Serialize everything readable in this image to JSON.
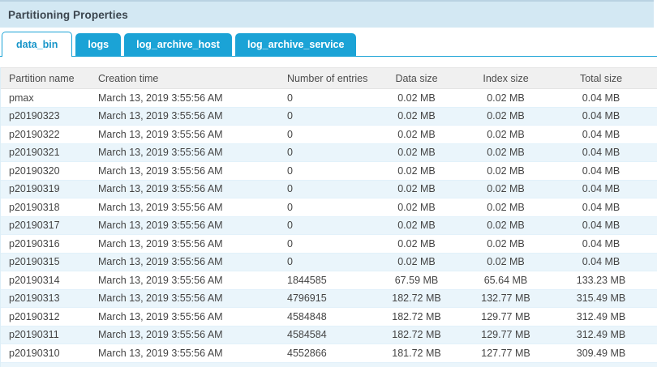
{
  "panel": {
    "title": "Partitioning Properties"
  },
  "tabs": [
    {
      "label": "data_bin",
      "active": true
    },
    {
      "label": "logs",
      "active": false
    },
    {
      "label": "log_archive_host",
      "active": false
    },
    {
      "label": "log_archive_service",
      "active": false
    }
  ],
  "table": {
    "columns": [
      "Partition name",
      "Creation time",
      "Number of entries",
      "Data size",
      "Index size",
      "Total size"
    ],
    "rows": [
      [
        "pmax",
        "March 13, 2019 3:55:56 AM",
        "0",
        "0.02 MB",
        "0.02 MB",
        "0.04 MB"
      ],
      [
        "p20190323",
        "March 13, 2019 3:55:56 AM",
        "0",
        "0.02 MB",
        "0.02 MB",
        "0.04 MB"
      ],
      [
        "p20190322",
        "March 13, 2019 3:55:56 AM",
        "0",
        "0.02 MB",
        "0.02 MB",
        "0.04 MB"
      ],
      [
        "p20190321",
        "March 13, 2019 3:55:56 AM",
        "0",
        "0.02 MB",
        "0.02 MB",
        "0.04 MB"
      ],
      [
        "p20190320",
        "March 13, 2019 3:55:56 AM",
        "0",
        "0.02 MB",
        "0.02 MB",
        "0.04 MB"
      ],
      [
        "p20190319",
        "March 13, 2019 3:55:56 AM",
        "0",
        "0.02 MB",
        "0.02 MB",
        "0.04 MB"
      ],
      [
        "p20190318",
        "March 13, 2019 3:55:56 AM",
        "0",
        "0.02 MB",
        "0.02 MB",
        "0.04 MB"
      ],
      [
        "p20190317",
        "March 13, 2019 3:55:56 AM",
        "0",
        "0.02 MB",
        "0.02 MB",
        "0.04 MB"
      ],
      [
        "p20190316",
        "March 13, 2019 3:55:56 AM",
        "0",
        "0.02 MB",
        "0.02 MB",
        "0.04 MB"
      ],
      [
        "p20190315",
        "March 13, 2019 3:55:56 AM",
        "0",
        "0.02 MB",
        "0.02 MB",
        "0.04 MB"
      ],
      [
        "p20190314",
        "March 13, 2019 3:55:56 AM",
        "1844585",
        "67.59 MB",
        "65.64 MB",
        "133.23 MB"
      ],
      [
        "p20190313",
        "March 13, 2019 3:55:56 AM",
        "4796915",
        "182.72 MB",
        "132.77 MB",
        "315.49 MB"
      ],
      [
        "p20190312",
        "March 13, 2019 3:55:56 AM",
        "4584848",
        "182.72 MB",
        "129.77 MB",
        "312.49 MB"
      ],
      [
        "p20190311",
        "March 13, 2019 3:55:56 AM",
        "4584584",
        "182.72 MB",
        "129.77 MB",
        "312.49 MB"
      ],
      [
        "p20190310",
        "March 13, 2019 3:55:56 AM",
        "4552866",
        "181.72 MB",
        "127.77 MB",
        "309.49 MB"
      ]
    ]
  },
  "colors": {
    "accent": "#1ba3d6",
    "panel_header_bg": "#d3e8f3",
    "panel_header_border": "#b9d2e2",
    "zebra_row": "#eaf5fb",
    "table_header_bg": "#f0f0f0"
  }
}
